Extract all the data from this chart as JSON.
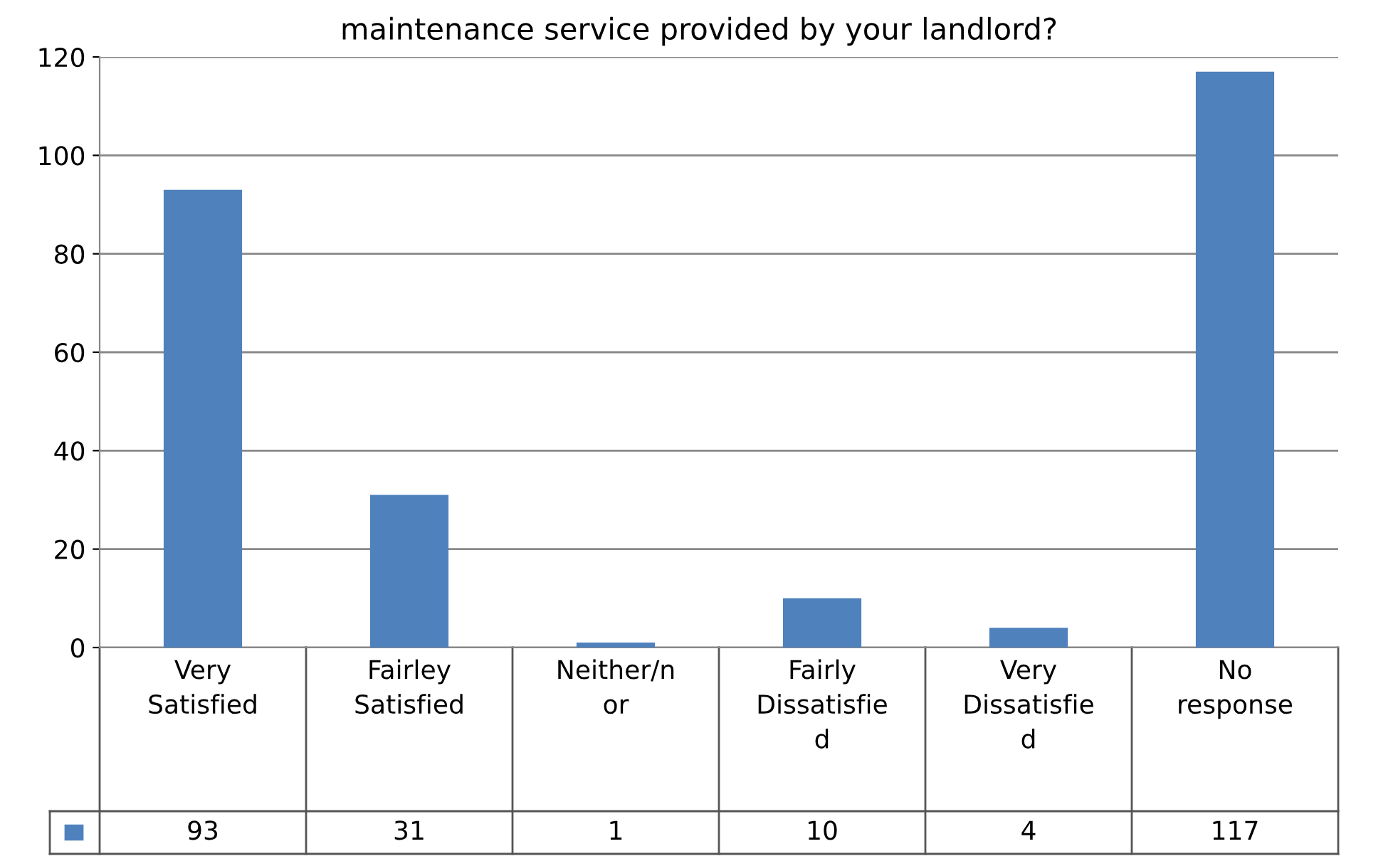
{
  "chart_data": {
    "type": "bar",
    "title": "maintenance service provided by your landlord?",
    "categories": [
      "Very\nSatisfied",
      "Fairley\nSatisfied",
      "Neither/n\nor",
      "Fairly\nDissatisfie\nd",
      "Very\nDissatisfie\nd",
      "No\nresponse"
    ],
    "values": [
      93,
      31,
      1,
      10,
      4,
      117
    ],
    "color": "#4f81bd",
    "ylim": [
      0,
      120
    ],
    "yticks": [
      0,
      20,
      40,
      60,
      80,
      100,
      120
    ],
    "grid": "y",
    "data_labels": true
  }
}
